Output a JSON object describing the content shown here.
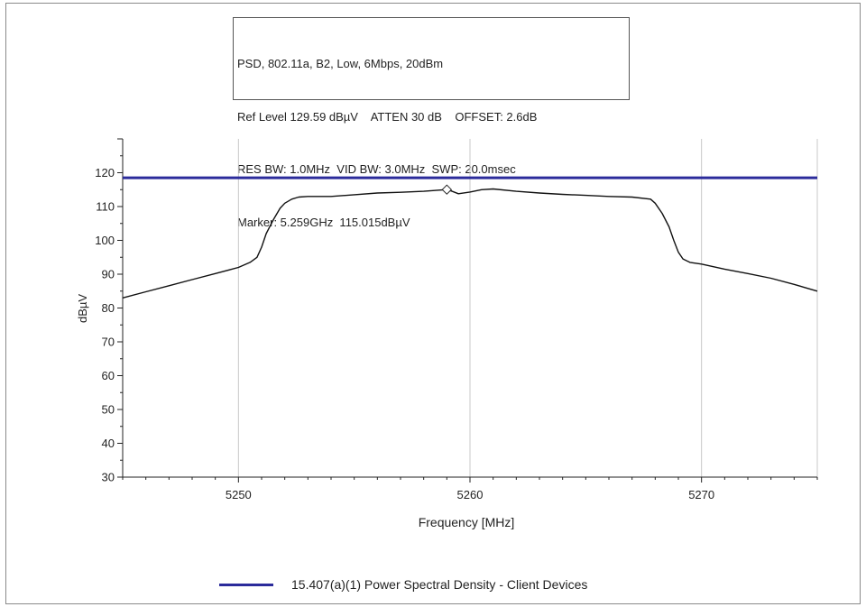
{
  "info": {
    "lines": [
      "PSD, 802.11a, B2, Low, 6Mbps, 20dBm",
      "Ref Level 129.59 dBµV    ATTEN 30 dB    OFFSET: 2.6dB",
      "RES BW: 1.0MHz  VID BW: 3.0MHz  SWP: 20.0msec",
      "Marker: 5.259GHz  115.015dBµV"
    ]
  },
  "chart_data": {
    "type": "line",
    "title": "",
    "xlabel": "Frequency [MHz]",
    "ylabel": "dBµV",
    "xlim": [
      5245,
      5275
    ],
    "ylim": [
      30,
      130
    ],
    "xticks": [
      5250,
      5260,
      5270
    ],
    "yticks": [
      30,
      40,
      50,
      60,
      70,
      80,
      90,
      100,
      110,
      120
    ],
    "grid": true,
    "legend_position": "bottom",
    "limit_line": {
      "name": "15.407(a)(1) Power Spectral Density - Client Devices",
      "value": 118.5,
      "color": "#2b2b9b"
    },
    "marker": {
      "x": 5259,
      "y": 115.015
    },
    "series": [
      {
        "color": "#111111",
        "x": [
          5245,
          5246,
          5247,
          5248,
          5249,
          5250,
          5250.5,
          5250.8,
          5251,
          5251.2,
          5251.5,
          5251.8,
          5252,
          5252.3,
          5252.6,
          5253,
          5254,
          5255,
          5256,
          5257,
          5258,
          5258.8,
          5259,
          5259.2,
          5259.5,
          5260,
          5260.5,
          5261,
          5262,
          5263,
          5264,
          5265,
          5266,
          5267,
          5267.8,
          5268,
          5268.3,
          5268.6,
          5268.8,
          5269,
          5269.2,
          5269.5,
          5270,
          5271,
          5272,
          5273,
          5274,
          5275
        ],
        "y": [
          83,
          84.8,
          86.6,
          88.4,
          90.2,
          92,
          93.5,
          95,
          98,
          102,
          106,
          109.5,
          111,
          112.2,
          112.8,
          113,
          113,
          113.5,
          114,
          114.2,
          114.5,
          114.9,
          115.0,
          114.6,
          113.8,
          114.3,
          115.0,
          115.2,
          114.5,
          114.0,
          113.6,
          113.3,
          113.0,
          112.8,
          112.2,
          111,
          108,
          104,
          100,
          96.5,
          94.5,
          93.5,
          93,
          91.5,
          90.2,
          88.8,
          87,
          85
        ]
      }
    ]
  }
}
